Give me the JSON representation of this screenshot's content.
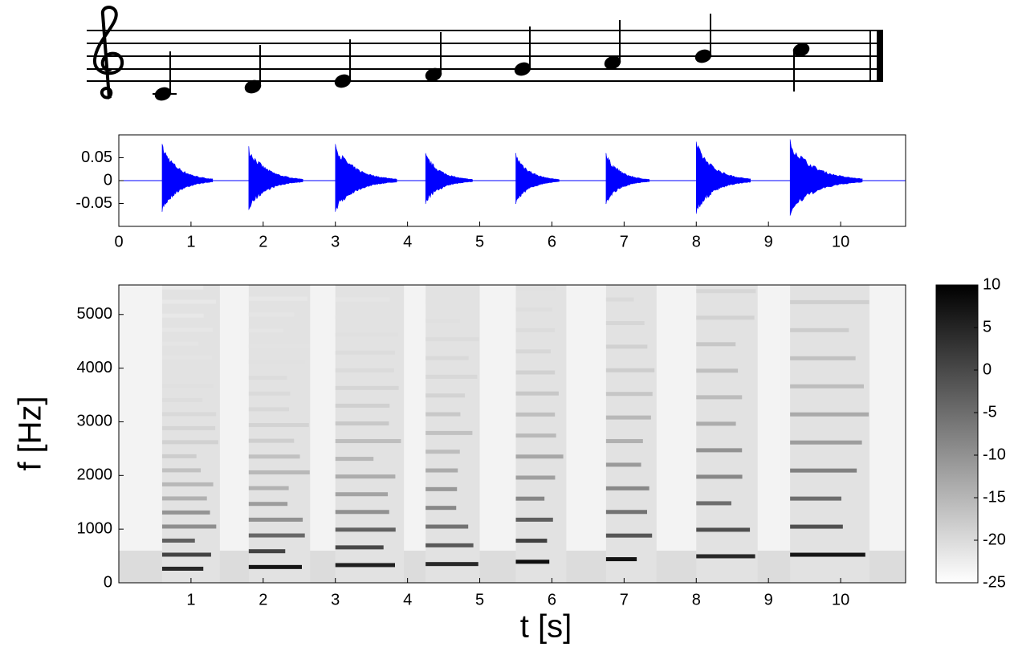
{
  "chart_data": [
    {
      "type": "waveform",
      "x": [
        0.6,
        1.8,
        3.0,
        4.25,
        5.5,
        6.75,
        8.0,
        9.3
      ],
      "x_end": [
        1.3,
        2.55,
        3.85,
        4.9,
        6.1,
        7.35,
        8.75,
        10.3
      ],
      "values": [
        0.08,
        0.075,
        0.08,
        0.06,
        0.06,
        0.06,
        0.085,
        0.09
      ],
      "color": "#0000ff",
      "xlim": [
        0,
        10.9
      ],
      "xticks": [
        0,
        1,
        2,
        3,
        4,
        5,
        6,
        7,
        8,
        9,
        10
      ],
      "ylim": [
        -0.1,
        0.1
      ],
      "yticks": [
        0.05,
        0,
        -0.05
      ]
    },
    {
      "type": "spectrogram",
      "x": [
        0.6,
        1.8,
        3.0,
        4.25,
        5.5,
        6.75,
        8.0,
        9.3
      ],
      "x_end": [
        1.4,
        2.65,
        3.95,
        5.0,
        6.2,
        7.45,
        8.85,
        10.4
      ],
      "values": [
        262,
        294,
        330,
        349,
        392,
        440,
        494,
        523
      ],
      "xlim": [
        0,
        10.9
      ],
      "xticks": [
        1,
        2,
        3,
        4,
        5,
        6,
        7,
        8,
        9,
        10
      ],
      "ylim": [
        0,
        5550
      ],
      "yticks": [
        0,
        1000,
        2000,
        3000,
        4000,
        5000
      ],
      "xlabel": "t [s]",
      "ylabel": "f [Hz]",
      "colorbar": {
        "ylim": [
          -25,
          10
        ],
        "yticks": [
          10,
          5,
          0,
          -5,
          -10,
          -15,
          -20,
          -25
        ]
      }
    }
  ]
}
